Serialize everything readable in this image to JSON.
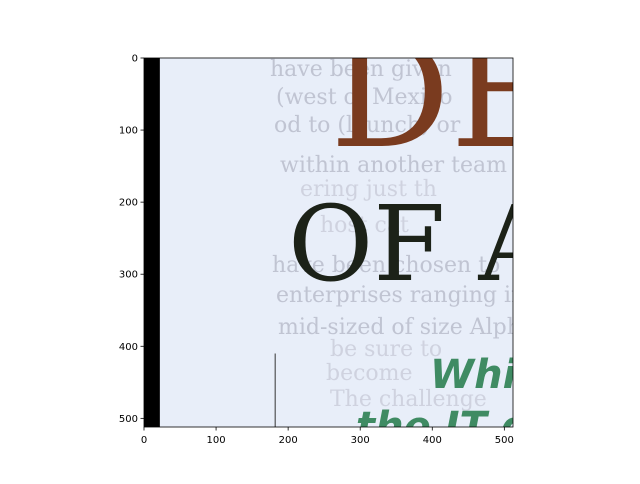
{
  "chart_data": {
    "type": "image",
    "title": "",
    "xlabel": "",
    "ylabel": "",
    "xlim": [
      0,
      512
    ],
    "ylim": [
      512,
      0
    ],
    "x_ticks": [
      0,
      100,
      200,
      300,
      400,
      500
    ],
    "y_ticks": [
      0,
      100,
      200,
      300,
      400,
      500
    ],
    "image": {
      "background_color": "#e8eef9",
      "left_bar_color": "#000000",
      "left_bar_x_end": 22,
      "vertical_line": {
        "x": 182,
        "y_start": 410,
        "y_end": 512,
        "color": "#333333"
      },
      "large_letters_top": {
        "text": "DE",
        "color": "#7a3b1f"
      },
      "large_letters_mid": {
        "text": "OF A",
        "color": "#1c2218"
      },
      "green_line_1": {
        "text": "Whic",
        "color": "#3f8b63"
      },
      "green_line_2": {
        "text": "the IT d",
        "color": "#3f8b63"
      },
      "bleed_lines": [
        "have been given",
        "(west of Mexico",
        "od to (launch) or",
        "within another team within",
        "ering just th",
        "host cat",
        "have been chosen to",
        "enterprises ranging in size",
        "mid-sized of size Alpha-based",
        "be sure to",
        "become",
        "The challenge"
      ]
    }
  }
}
